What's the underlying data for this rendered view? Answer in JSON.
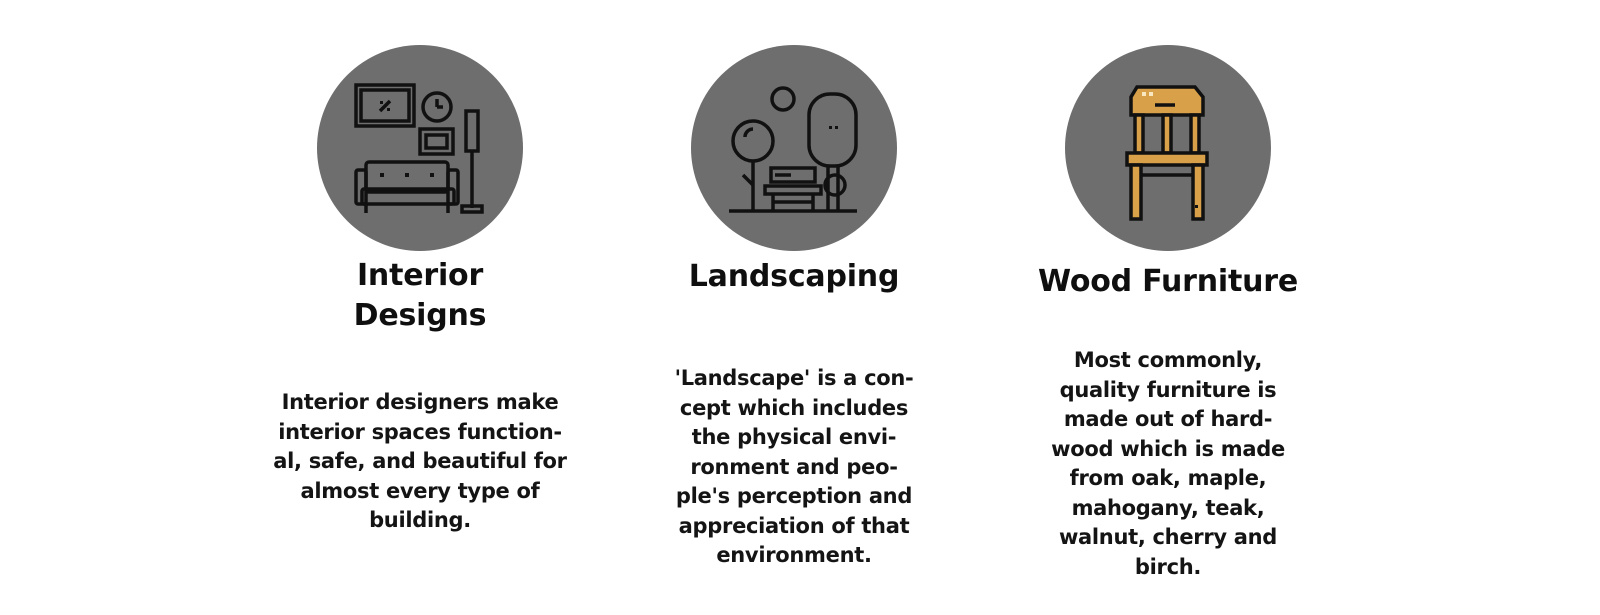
{
  "services": [
    {
      "icon": "living-room-icon",
      "title": "Interior\nDesigns",
      "description": "Interior designers make\ninterior spaces function-\nal, safe, and beautiful for\nalmost every type of\nbuilding."
    },
    {
      "icon": "park-landscape-icon",
      "title": "Landscaping",
      "description": "'Landscape' is a con-\ncept which includes\nthe physical envi-\nronment and peo-\nple's perception and\nappreciation of that\nenvironment."
    },
    {
      "icon": "wooden-chair-icon",
      "title": "Wood Furniture",
      "description": "Most commonly,\nquality furniture is\nmade out of hard-\nwood which is made\nfrom oak, maple,\nmahogany, teak,\nwalnut, cherry and\nbirch."
    }
  ],
  "colors": {
    "circle": "#6e6e6e",
    "icon_stroke": "#111111",
    "wood": "#d9a04a",
    "wood_light": "#f0c070"
  }
}
